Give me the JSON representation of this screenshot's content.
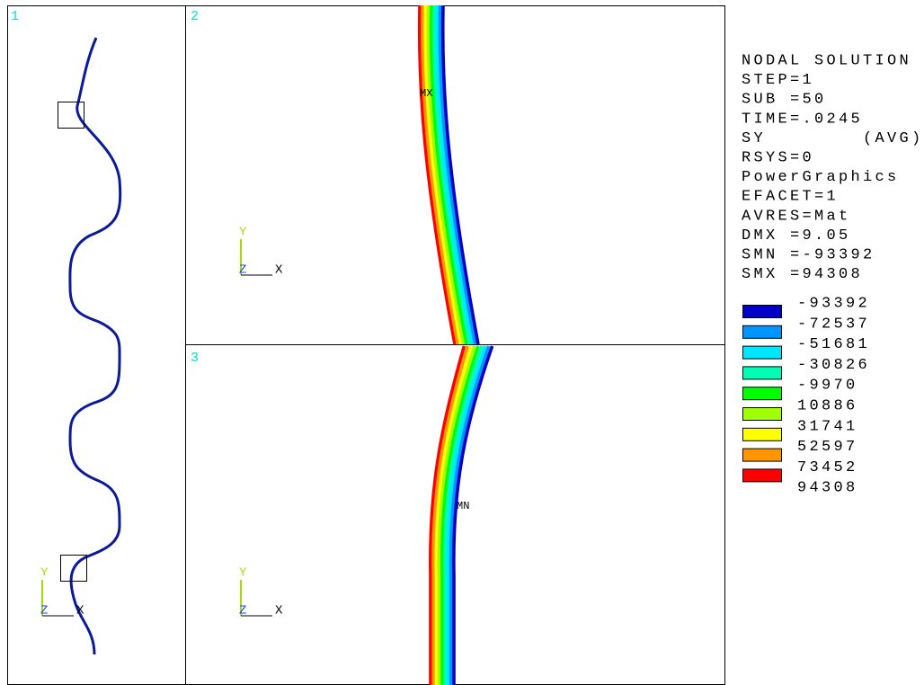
{
  "viewports": [
    {
      "label": "1"
    },
    {
      "label": "2"
    },
    {
      "label": "3"
    }
  ],
  "markers": {
    "max": "MX",
    "min": "MN"
  },
  "triad": {
    "y": "Y",
    "z": "Z",
    "x": "X"
  },
  "legend": {
    "lines": [
      "NODAL SOLUTION",
      "STEP=1",
      "SUB =50",
      "TIME=.0245",
      "SY        (AVG)",
      "RSYS=0",
      "PowerGraphics",
      "EFACET=1",
      "AVRES=Mat",
      "DMX =9.05",
      "SMN =-93392",
      "SMX =94308"
    ],
    "contour_labels": [
      "-93392",
      "-72537",
      "-51681",
      "-30826",
      "-9970",
      "10886",
      "31741",
      "52597",
      "73452",
      "94308"
    ],
    "contour_colors": [
      "#0000c8",
      "#0096ff",
      "#00e6ff",
      "#00ffb4",
      "#00ff00",
      "#a0ff00",
      "#ffff00",
      "#ff9600",
      "#ff0000"
    ]
  }
}
